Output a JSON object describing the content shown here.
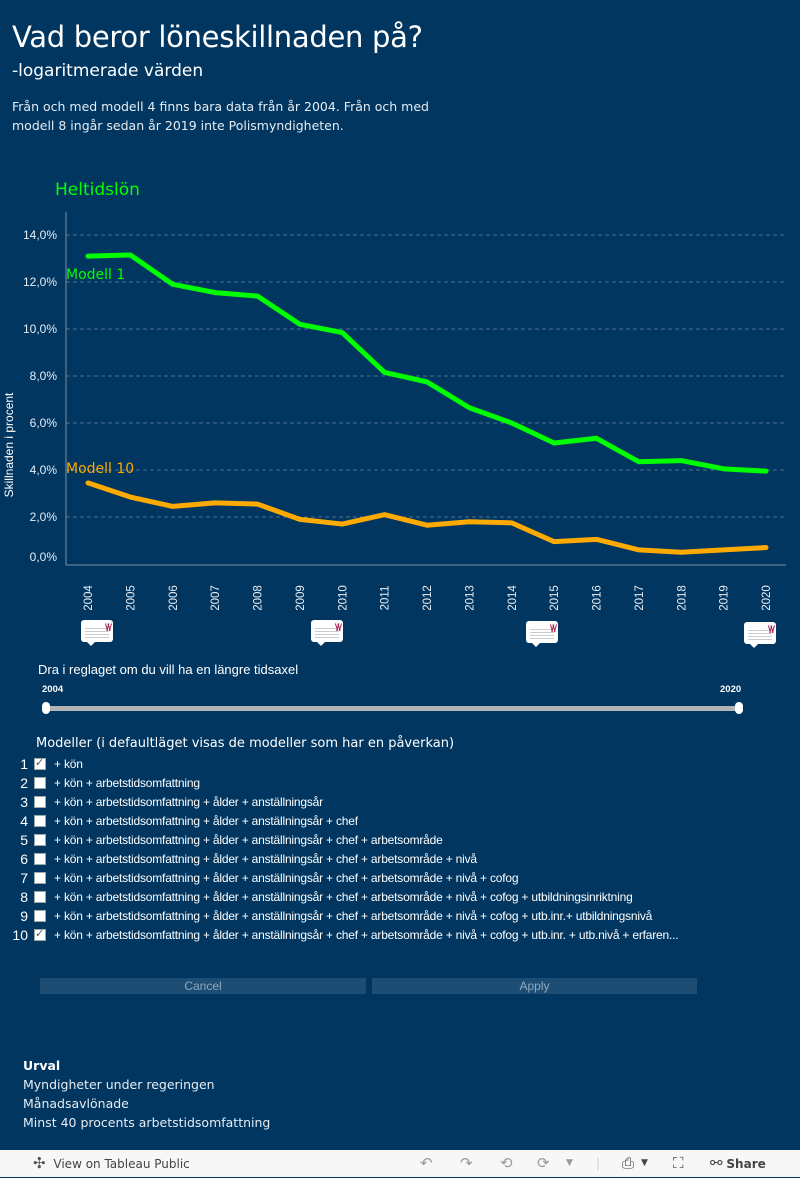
{
  "header": {
    "title": "Vad beror löneskillnaden på?",
    "subtitle": "-logaritmerade värden",
    "note": "Från och med modell 4 finns bara data från år 2004. Från och med modell 8 ingår sedan år 2019 inte Polismyndigheten."
  },
  "colors": {
    "background": "#003660",
    "model1": "#00ff00",
    "model10": "#ffaa00"
  },
  "chart_data": {
    "type": "line",
    "title": "Heltidslön",
    "xlabel": "",
    "ylabel": "Skillnaden i procent",
    "x": [
      "2004",
      "2005",
      "2006",
      "2007",
      "2008",
      "2009",
      "2010",
      "2011",
      "2012",
      "2013",
      "2014",
      "2015",
      "2016",
      "2017",
      "2018",
      "2019",
      "2020"
    ],
    "yticks": [
      "0,0%",
      "2,0%",
      "4,0%",
      "6,0%",
      "8,0%",
      "10,0%",
      "12,0%",
      "14,0%"
    ],
    "ylim": [
      0,
      15
    ],
    "grid": true,
    "series": [
      {
        "name": "Modell 1",
        "color": "#00ff00",
        "values": [
          13.1,
          13.15,
          11.9,
          11.55,
          11.4,
          10.2,
          9.85,
          8.15,
          7.75,
          6.65,
          6.0,
          5.15,
          5.35,
          4.35,
          4.4,
          4.05,
          3.95
        ]
      },
      {
        "name": "Modell 10",
        "color": "#ffaa00",
        "values": [
          3.45,
          2.85,
          2.45,
          2.6,
          2.55,
          1.9,
          1.7,
          2.1,
          1.65,
          1.8,
          1.75,
          0.95,
          1.05,
          0.6,
          0.5,
          0.6,
          0.7
        ]
      }
    ]
  },
  "annotations": {
    "logo_text": "\\/\\/"
  },
  "slider": {
    "label": "Dra i reglaget om du vill ha en längre tidsaxel",
    "min_label": "2004",
    "max_label": "2020",
    "range": [
      2004,
      2020
    ]
  },
  "models": {
    "heading": "Modeller (i defaultläget visas de modeller som har en påverkan)",
    "items": [
      {
        "num": "1",
        "checked": true,
        "label": "+ kön"
      },
      {
        "num": "2",
        "checked": false,
        "label": "+ kön + arbetstidsomfattning"
      },
      {
        "num": "3",
        "checked": false,
        "label": "+ kön + arbetstidsomfattning + ålder + anställningsår"
      },
      {
        "num": "4",
        "checked": false,
        "label": "+ kön + arbetstidsomfattning + ålder + anställningsår + chef"
      },
      {
        "num": "5",
        "checked": false,
        "label": "+ kön + arbetstidsomfattning + ålder + anställningsår + chef + arbetsområde"
      },
      {
        "num": "6",
        "checked": false,
        "label": "+ kön + arbetstidsomfattning + ålder + anställningsår + chef + arbetsområde + nivå"
      },
      {
        "num": "7",
        "checked": false,
        "label": "+ kön + arbetstidsomfattning + ålder + anställningsår + chef + arbetsområde + nivå + cofog"
      },
      {
        "num": "8",
        "checked": false,
        "label": "+ kön + arbetstidsomfattning + ålder + anställningsår + chef + arbetsområde + nivå + cofog + utbildningsinriktning"
      },
      {
        "num": "9",
        "checked": false,
        "label": "+ kön + arbetstidsomfattning + ålder + anställningsår + chef + arbetsområde + nivå + cofog + utb.inr.+ utbildningsnivå"
      },
      {
        "num": "10",
        "checked": true,
        "label": "+ kön + arbetstidsomfattning + ålder + anställningsår + chef + arbetsområde + nivå + cofog + utb.inr. + utb.nivå + erfaren..."
      }
    ],
    "cancel_label": "Cancel",
    "apply_label": "Apply"
  },
  "urval": {
    "heading": "Urval",
    "lines": [
      "Myndigheter under regeringen",
      "Månadsavlönade",
      "Minst 40 procents arbetstidsomfattning"
    ]
  },
  "footer": {
    "view_label": "View on Tableau Public",
    "share_label": "Share"
  }
}
